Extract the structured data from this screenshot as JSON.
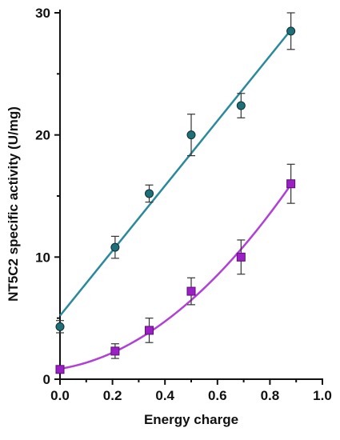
{
  "chart_data": {
    "type": "scatter",
    "title": "",
    "xlabel": "Energy charge",
    "ylabel": "NT5C2 specific activity (U/mg)",
    "xlim": [
      0,
      1.0
    ],
    "ylim": [
      0,
      30
    ],
    "x_ticks": [
      "0.0",
      "0.2",
      "0.4",
      "0.6",
      "0.8",
      "1.0"
    ],
    "y_ticks": [
      "0",
      "10",
      "20",
      "30"
    ],
    "grid": false,
    "legend": "none",
    "series": [
      {
        "marker": "circle",
        "color": "#1f6f78",
        "fit_color": "#2a8a9a",
        "fit": "linear",
        "fit_x": [
          0,
          0.88
        ],
        "fit_y": [
          5.2,
          28.6
        ],
        "points": [
          {
            "x": 0.0,
            "y": 4.3,
            "err": 0.5
          },
          {
            "x": 0.21,
            "y": 10.8,
            "err": 0.9
          },
          {
            "x": 0.34,
            "y": 15.2,
            "err": 0.7
          },
          {
            "x": 0.5,
            "y": 20.0,
            "err": 1.7
          },
          {
            "x": 0.69,
            "y": 22.4,
            "err": 1.0
          },
          {
            "x": 0.88,
            "y": 28.5,
            "err": 1.5
          }
        ]
      },
      {
        "marker": "square",
        "color": "#9b1fc4",
        "fit_color": "#b040d8",
        "fit": "quadratic",
        "fit_x": [
          0,
          0.88
        ],
        "fit_coef": [
          0.85,
          3.5,
          15.5
        ],
        "points": [
          {
            "x": 0.0,
            "y": 0.8,
            "err": 0.3
          },
          {
            "x": 0.21,
            "y": 2.3,
            "err": 0.6
          },
          {
            "x": 0.34,
            "y": 4.0,
            "err": 1.0
          },
          {
            "x": 0.5,
            "y": 7.2,
            "err": 1.1
          },
          {
            "x": 0.69,
            "y": 10.0,
            "err": 1.4
          },
          {
            "x": 0.88,
            "y": 16.0,
            "err": 1.6
          }
        ]
      }
    ]
  }
}
